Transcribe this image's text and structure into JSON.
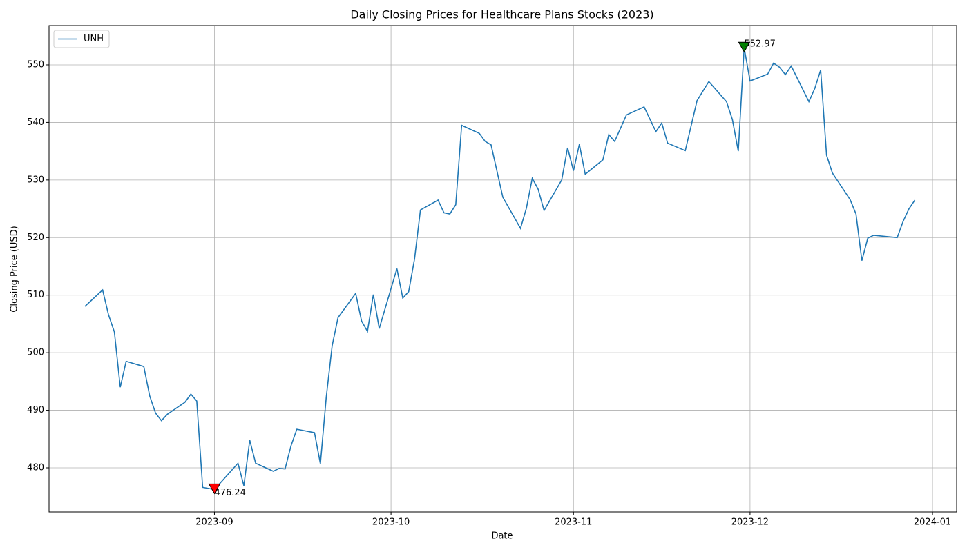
{
  "chart_data": {
    "type": "line",
    "title": "Daily Closing Prices for Healthcare Plans Stocks (2023)",
    "xlabel": "Date",
    "ylabel": "Closing Price (USD)",
    "x": [
      19579,
      19582,
      19583,
      19584,
      19585,
      19586,
      19589,
      19590,
      19591,
      19592,
      19593,
      19596,
      19597,
      19598,
      19599,
      19601,
      19605,
      19606,
      19607,
      19608,
      19611,
      19612,
      19613,
      19614,
      19615,
      19618,
      19619,
      19620,
      19621,
      19622,
      19625,
      19626,
      19627,
      19628,
      19629,
      19632,
      19633,
      19634,
      19635,
      19636,
      19639,
      19640,
      19641,
      19642,
      19643,
      19646,
      19647,
      19648,
      19650,
      19653,
      19654,
      19655,
      19656,
      19657,
      19660,
      19661,
      19662,
      19663,
      19664,
      19667,
      19668,
      19669,
      19671,
      19674,
      19676,
      19677,
      19678,
      19681,
      19683,
      19685,
      19688,
      19689,
      19690,
      19691,
      19692,
      19695,
      19696,
      19697,
      19698,
      19699,
      19702,
      19703,
      19704,
      19705,
      19706,
      19709,
      19710,
      19711,
      19712,
      19713,
      19717,
      19718,
      19719,
      19720
    ],
    "series": [
      {
        "name": "UNH",
        "color": "#1f77b4",
        "values": [
          508.05,
          510.9,
          506.6,
          503.6,
          494.0,
          498.5,
          497.6,
          492.5,
          489.5,
          488.2,
          489.3,
          491.4,
          492.8,
          491.6,
          476.6,
          476.24,
          480.8,
          476.9,
          484.8,
          480.8,
          479.4,
          479.9,
          479.8,
          483.8,
          486.7,
          486.1,
          480.7,
          492.3,
          501.2,
          506.1,
          510.3,
          505.5,
          503.7,
          510.1,
          504.2,
          514.6,
          509.5,
          510.6,
          516.3,
          524.8,
          526.5,
          524.3,
          524.1,
          525.7,
          539.5,
          538.1,
          536.7,
          536.1,
          527.0,
          521.6,
          525.1,
          530.3,
          528.4,
          524.7,
          530.0,
          535.6,
          531.6,
          536.2,
          531.0,
          533.5,
          537.9,
          536.7,
          541.3,
          542.7,
          538.4,
          539.9,
          536.4,
          535.1,
          543.8,
          547.1,
          543.6,
          540.5,
          535.0,
          552.97,
          547.2,
          548.4,
          550.3,
          549.6,
          548.3,
          549.8,
          543.6,
          545.9,
          549.1,
          534.3,
          531.2,
          526.6,
          524.1,
          516.0,
          519.9,
          520.4,
          520.0,
          522.8,
          525.0,
          526.5
        ]
      }
    ],
    "annotations": [
      {
        "x": 19601,
        "y": 476.24,
        "label": "476.24",
        "color": "red"
      },
      {
        "x": 19691,
        "y": 552.97,
        "label": "552.97",
        "color": "green"
      }
    ],
    "xlim": [
      19572.9,
      19727.1
    ],
    "xticks": [
      {
        "value": 19601,
        "label": "2023-09"
      },
      {
        "value": 19631,
        "label": "2023-10"
      },
      {
        "value": 19662,
        "label": "2023-11"
      },
      {
        "value": 19692,
        "label": "2023-12"
      },
      {
        "value": 19723,
        "label": "2024-01"
      }
    ],
    "ylim": [
      472.33,
      556.83
    ],
    "yticks": [
      480,
      490,
      500,
      510,
      520,
      530,
      540,
      550
    ],
    "grid": true,
    "legend": "upper-left"
  }
}
